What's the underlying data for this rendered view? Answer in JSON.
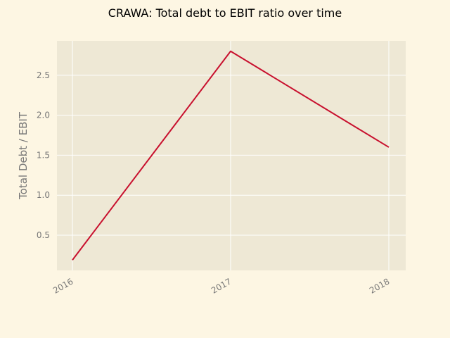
{
  "chart_data": {
    "type": "line",
    "title": "CRAWA: Total debt to EBIT ratio over time",
    "xlabel": "",
    "ylabel": "Total Debt / EBIT",
    "x": [
      "2016",
      "2017",
      "2018"
    ],
    "series": [
      {
        "values": [
          0.19,
          2.8,
          1.6
        ]
      }
    ],
    "yticks": [
      0.5,
      1.0,
      1.5,
      2.0,
      2.5
    ],
    "ytick_labels": [
      "0.5",
      "1.0",
      "1.5",
      "2.0",
      "2.5"
    ],
    "ylim": [
      0.06,
      2.93
    ],
    "grid": true,
    "colors": {
      "figure_bg": "#fdf6e3",
      "plot_bg": "#eee8d5",
      "grid": "#ffffff",
      "line": "#c8102e",
      "tick_text": "#777777"
    }
  }
}
